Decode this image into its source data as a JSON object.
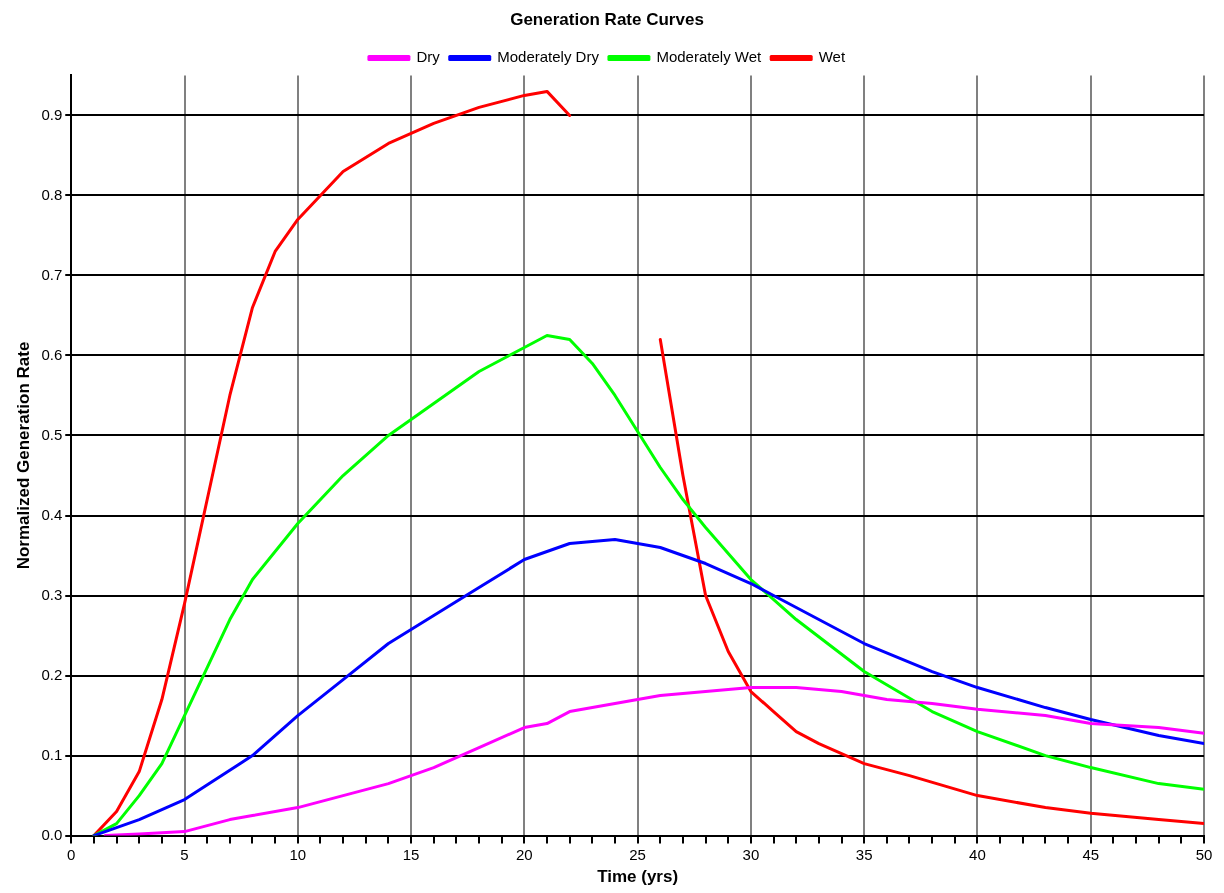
{
  "chart_data": {
    "type": "line",
    "title": "Generation Rate Curves",
    "xlabel": "Time (yrs)",
    "ylabel": "Normalized Generation Rate",
    "xlim": [
      0,
      50
    ],
    "xticks": [
      0,
      {
        "value": 1,
        "label": null
      },
      {
        "value": 2,
        "label": null
      },
      {
        "value": 3,
        "label": null
      },
      {
        "value": 4,
        "label": null
      },
      5,
      {
        "value": 6,
        "label": null
      },
      {
        "value": 7,
        "label": null
      },
      {
        "value": 8,
        "label": null
      },
      {
        "value": 9,
        "label": null
      },
      10,
      {
        "value": 11,
        "label": null
      },
      {
        "value": 12,
        "label": null
      },
      {
        "value": 13,
        "label": null
      },
      {
        "value": 14,
        "label": null
      },
      15,
      {
        "value": 16,
        "label": null
      },
      {
        "value": 17,
        "label": null
      },
      {
        "value": 18,
        "label": null
      },
      {
        "value": 19,
        "label": null
      },
      20,
      {
        "value": 21,
        "label": null
      },
      {
        "value": 22,
        "label": null
      },
      {
        "value": 23,
        "label": null
      },
      {
        "value": 24,
        "label": null
      },
      25,
      {
        "value": 26,
        "label": null
      },
      {
        "value": 27,
        "label": null
      },
      {
        "value": 28,
        "label": null
      },
      {
        "value": 29,
        "label": null
      },
      30,
      {
        "value": 31,
        "label": null
      },
      {
        "value": 32,
        "label": null
      },
      {
        "value": 33,
        "label": null
      },
      {
        "value": 34,
        "label": null
      },
      35,
      {
        "value": 36,
        "label": null
      },
      {
        "value": 37,
        "label": null
      },
      {
        "value": 38,
        "label": null
      },
      {
        "value": 39,
        "label": null
      },
      40,
      {
        "value": 41,
        "label": null
      },
      {
        "value": 42,
        "label": null
      },
      {
        "value": 43,
        "label": null
      },
      {
        "value": 44,
        "label": null
      },
      45,
      {
        "value": 46,
        "label": null
      },
      {
        "value": 47,
        "label": null
      },
      {
        "value": 48,
        "label": null
      },
      {
        "value": 49,
        "label": null
      },
      50
    ],
    "ylim": [
      0,
      0.95
    ],
    "yticks": [
      {
        "value": 0,
        "label": "0.0"
      },
      0.1,
      0.2,
      0.3,
      0.4,
      0.5,
      0.6,
      0.7,
      0.8,
      0.9
    ],
    "grid": true,
    "legend": "top",
    "marker": "none",
    "line_style": "solid",
    "series": [
      {
        "name": "Dry",
        "color": "#ff00ff",
        "x": [
          1.5,
          3,
          5,
          7,
          8,
          10,
          12,
          14,
          16,
          18,
          20,
          21,
          22,
          24,
          26,
          28,
          30,
          32,
          34,
          36,
          38,
          40,
          43,
          45,
          48,
          50
        ],
        "values": [
          0,
          0.002,
          0.005,
          0.02,
          0.025,
          0.035,
          0.05,
          0.065,
          0.085,
          0.11,
          0.135,
          0.14,
          0.155,
          0.165,
          0.175,
          0.18,
          0.185,
          0.185,
          0.18,
          0.17,
          0.165,
          0.158,
          0.15,
          0.14,
          0.135,
          0.128
        ]
      },
      {
        "name": "Moderately Dry",
        "color": "#0000ff",
        "x": [
          1,
          2,
          3,
          5,
          8,
          10,
          12,
          14,
          16,
          18,
          20,
          22,
          24,
          26,
          28,
          30,
          32,
          35,
          38,
          40,
          43,
          45,
          48,
          50
        ],
        "values": [
          0,
          0.01,
          0.02,
          0.045,
          0.1,
          0.15,
          0.195,
          0.24,
          0.275,
          0.31,
          0.345,
          0.365,
          0.37,
          0.36,
          0.34,
          0.315,
          0.285,
          0.24,
          0.205,
          0.185,
          0.16,
          0.145,
          0.125,
          0.115
        ]
      },
      {
        "name": "Moderately Wet",
        "color": "#00ff00",
        "x": [
          1,
          2,
          3,
          4,
          5,
          6,
          7,
          8,
          10,
          12,
          14,
          16,
          18,
          20,
          21,
          22,
          23,
          24,
          25,
          26,
          27,
          28,
          30,
          32,
          35,
          38,
          40,
          43,
          45,
          48,
          50
        ],
        "values": [
          0,
          0.015,
          0.05,
          0.09,
          0.15,
          0.21,
          0.27,
          0.32,
          0.39,
          0.45,
          0.5,
          0.54,
          0.58,
          0.61,
          0.625,
          0.62,
          0.59,
          0.55,
          0.505,
          0.46,
          0.42,
          0.385,
          0.32,
          0.27,
          0.205,
          0.155,
          0.13,
          0.1,
          0.085,
          0.065,
          0.058
        ]
      },
      {
        "name": "Wet",
        "color": "#ff0000",
        "x": [
          1,
          2,
          3,
          4,
          5,
          6,
          7,
          8,
          9,
          10,
          12,
          14,
          16,
          18,
          20,
          21,
          22,
          23,
          24,
          25,
          26,
          27,
          28,
          29,
          30,
          31,
          32,
          33,
          35,
          37,
          40,
          43,
          45,
          48,
          50
        ],
        "values": [
          0,
          0.03,
          0.08,
          0.17,
          0.29,
          0.42,
          0.55,
          0.66,
          0.73,
          0.77,
          0.83,
          0.865,
          0.89,
          0.91,
          0.925,
          0.93,
          0.9,
          null,
          null,
          null,
          0.62,
          0.45,
          0.3,
          0.23,
          0.18,
          0.155,
          0.13,
          0.115,
          0.09,
          0.075,
          0.05,
          0.035,
          0.028,
          0.02,
          0.015
        ]
      }
    ]
  }
}
